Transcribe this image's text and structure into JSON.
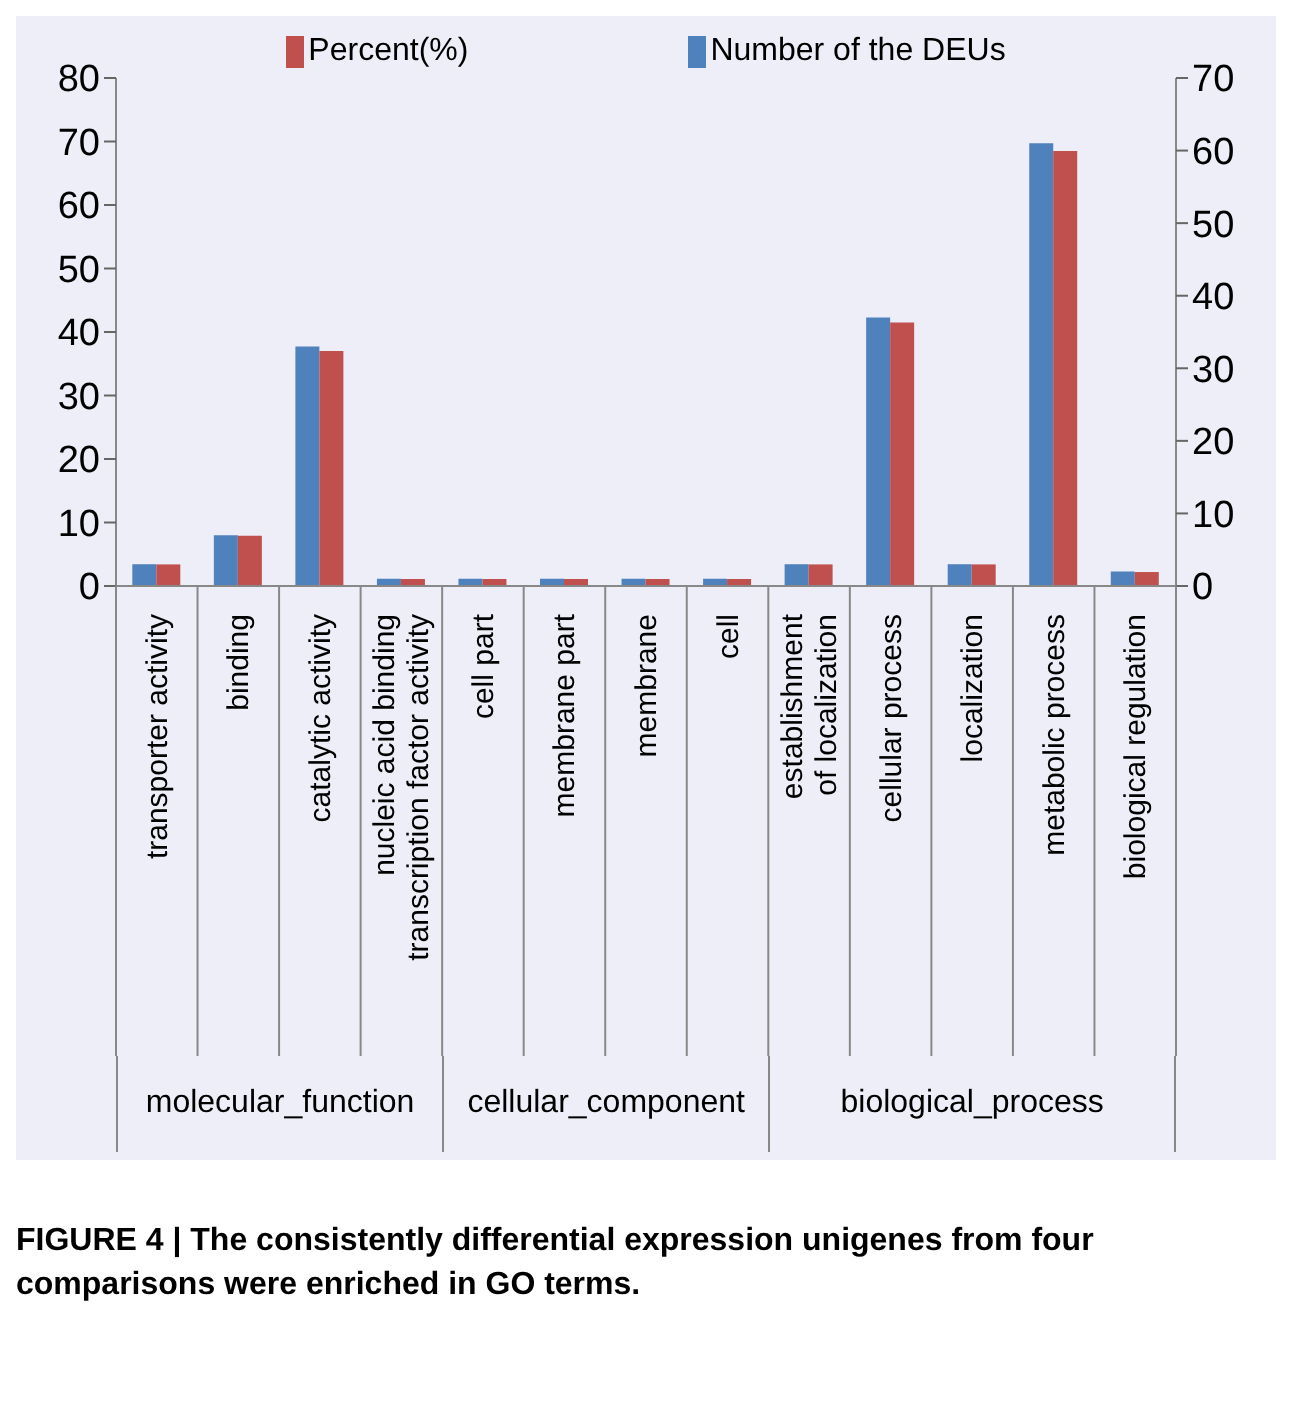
{
  "chart_data": {
    "type": "bar",
    "categories": [
      "transporter activity",
      "binding",
      "catalytic activity",
      "nucleic acid binding transcription factor activity",
      "cell part",
      "membrane part",
      "membrane",
      "cell",
      "establishment of localization",
      "cellular process",
      "localization",
      "metabolic process",
      "biological regulation"
    ],
    "series": [
      {
        "name": "Number of the DEUs",
        "color": "#4f81bd",
        "axis": "y2",
        "values": [
          3,
          7,
          33,
          1,
          1,
          1,
          1,
          1,
          3,
          37,
          3,
          61,
          2
        ]
      },
      {
        "name": "Percent(%)",
        "color": "#c0504d",
        "values": [
          3.4,
          7.9,
          37,
          1.1,
          1.1,
          1.1,
          1.1,
          1.1,
          3.4,
          41.5,
          3.4,
          68.5,
          2.2
        ]
      }
    ],
    "ylim": [
      0,
      80
    ],
    "yticks": [
      0,
      10,
      20,
      30,
      40,
      50,
      60,
      70,
      80
    ],
    "y2lim": [
      0,
      70
    ],
    "y2ticks": [
      0,
      10,
      20,
      30,
      40,
      50,
      60,
      70
    ],
    "legend": "top",
    "grid": false,
    "annotations": [
      "molecular_function",
      "cellular_component",
      "biological_process",
      "FIGURE 4 | The consistently differential expression unigenes from four comparisons were enriched in GO terms."
    ]
  }
}
